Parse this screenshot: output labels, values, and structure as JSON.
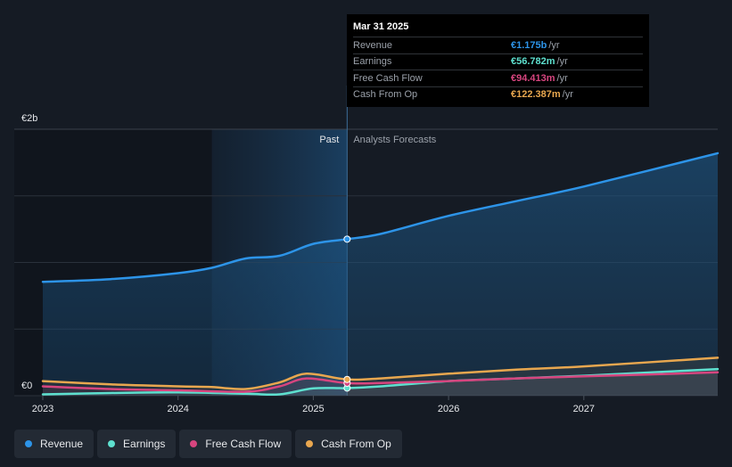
{
  "chart_data": {
    "type": "line",
    "y_top_label": "€2b",
    "y_bottom_label": "€0",
    "ylim": [
      0,
      2
    ],
    "xlim": [
      2023.0,
      2027.99
    ],
    "x_ticks": [
      {
        "value": 2023,
        "label": "2023"
      },
      {
        "value": 2024,
        "label": "2024"
      },
      {
        "value": 2025,
        "label": "2025"
      },
      {
        "value": 2026,
        "label": "2026"
      },
      {
        "value": 2027,
        "label": "2027"
      }
    ],
    "past_label": "Past",
    "forecast_label": "Analysts Forecasts",
    "split_x": 2025.25,
    "highlight_start_x": 2024.25,
    "grid": true,
    "legend_position": "bottom",
    "series": [
      {
        "name": "Revenue",
        "color": "#2d94e8",
        "filled": true,
        "points": [
          [
            2023.0,
            0.855
          ],
          [
            2023.5,
            0.875
          ],
          [
            2024.0,
            0.92
          ],
          [
            2024.25,
            0.96
          ],
          [
            2024.5,
            1.03
          ],
          [
            2024.75,
            1.05
          ],
          [
            2025.0,
            1.14
          ],
          [
            2025.25,
            1.175
          ],
          [
            2025.5,
            1.215
          ],
          [
            2026.0,
            1.35
          ],
          [
            2026.5,
            1.46
          ],
          [
            2027.0,
            1.57
          ],
          [
            2027.99,
            1.82
          ]
        ]
      },
      {
        "name": "Earnings",
        "color": "#5ee0cf",
        "filled": false,
        "points": [
          [
            2023.0,
            0.01
          ],
          [
            2023.5,
            0.02
          ],
          [
            2024.0,
            0.025
          ],
          [
            2024.5,
            0.015
          ],
          [
            2024.75,
            0.01
          ],
          [
            2025.0,
            0.055
          ],
          [
            2025.25,
            0.057
          ],
          [
            2025.5,
            0.07
          ],
          [
            2026.0,
            0.11
          ],
          [
            2026.5,
            0.13
          ],
          [
            2027.0,
            0.15
          ],
          [
            2027.99,
            0.2
          ]
        ]
      },
      {
        "name": "Free Cash Flow",
        "color": "#d7457f",
        "filled": false,
        "points": [
          [
            2023.0,
            0.07
          ],
          [
            2023.5,
            0.05
          ],
          [
            2024.0,
            0.04
          ],
          [
            2024.5,
            0.03
          ],
          [
            2024.75,
            0.07
          ],
          [
            2024.95,
            0.13
          ],
          [
            2025.25,
            0.094
          ],
          [
            2025.5,
            0.095
          ],
          [
            2026.0,
            0.11
          ],
          [
            2026.5,
            0.13
          ],
          [
            2027.0,
            0.145
          ],
          [
            2027.99,
            0.175
          ]
        ]
      },
      {
        "name": "Cash From Op",
        "color": "#e8a74f",
        "filled": false,
        "points": [
          [
            2023.0,
            0.11
          ],
          [
            2023.5,
            0.085
          ],
          [
            2024.0,
            0.07
          ],
          [
            2024.25,
            0.065
          ],
          [
            2024.5,
            0.05
          ],
          [
            2024.75,
            0.1
          ],
          [
            2024.95,
            0.165
          ],
          [
            2025.25,
            0.122
          ],
          [
            2025.5,
            0.13
          ],
          [
            2026.0,
            0.165
          ],
          [
            2026.5,
            0.195
          ],
          [
            2027.0,
            0.22
          ],
          [
            2027.99,
            0.285
          ]
        ]
      }
    ]
  },
  "tooltip": {
    "date": "Mar 31 2025",
    "rows": [
      {
        "name": "Revenue",
        "value": "€1.175b",
        "unit": "/yr",
        "color": "#2d94e8"
      },
      {
        "name": "Earnings",
        "value": "€56.782m",
        "unit": "/yr",
        "color": "#5ee0cf"
      },
      {
        "name": "Free Cash Flow",
        "value": "€94.413m",
        "unit": "/yr",
        "color": "#d7457f"
      },
      {
        "name": "Cash From Op",
        "value": "€122.387m",
        "unit": "/yr",
        "color": "#e8a74f"
      }
    ]
  },
  "legend": [
    {
      "label": "Revenue",
      "color": "#2d94e8"
    },
    {
      "label": "Earnings",
      "color": "#5ee0cf"
    },
    {
      "label": "Free Cash Flow",
      "color": "#d7457f"
    },
    {
      "label": "Cash From Op",
      "color": "#e8a74f"
    }
  ]
}
